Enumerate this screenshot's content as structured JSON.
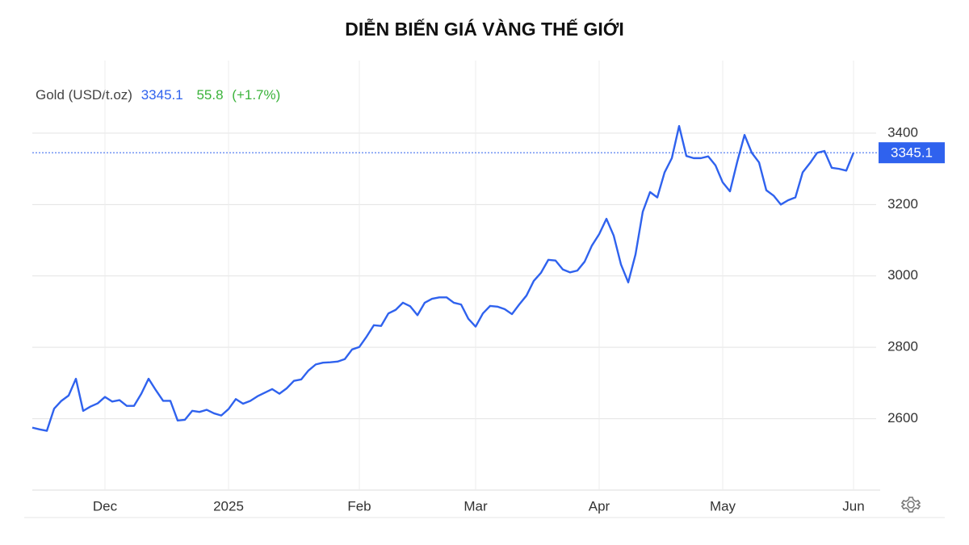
{
  "chart_data": {
    "type": "line",
    "title": "DIỄN BIẾN GIÁ VÀNG THẾ GIỚI",
    "instrument": "Gold (USD/t.oz)",
    "price": 3345.1,
    "change": 55.8,
    "change_pct_label": "(+1.7%)",
    "color": "#2f62ee",
    "grid": true,
    "ylim": [
      2400,
      3600
    ],
    "yticks": [
      2600,
      2800,
      3000,
      3200,
      3400
    ],
    "categories": [
      null,
      null,
      null,
      null,
      null,
      null,
      null,
      null,
      null,
      null,
      "Dec",
      null,
      null,
      null,
      null,
      null,
      null,
      null,
      null,
      null,
      null,
      null,
      null,
      null,
      null,
      null,
      null,
      "2025",
      null,
      null,
      null,
      null,
      null,
      null,
      null,
      null,
      null,
      null,
      null,
      null,
      null,
      null,
      null,
      null,
      null,
      "Feb",
      null,
      null,
      null,
      null,
      null,
      null,
      null,
      null,
      null,
      null,
      null,
      null,
      null,
      null,
      null,
      "Mar",
      null,
      null,
      null,
      null,
      null,
      null,
      null,
      null,
      null,
      null,
      null,
      null,
      null,
      null,
      null,
      null,
      "Apr",
      null,
      null,
      null,
      null,
      null,
      null,
      null,
      null,
      null,
      null,
      null,
      null,
      null,
      null,
      null,
      null,
      "May",
      null,
      null,
      null,
      null,
      null,
      null,
      null,
      null,
      null,
      null,
      null,
      null,
      null,
      null,
      null,
      null,
      null,
      "Jun"
    ],
    "values": [
      2575,
      2570,
      2566,
      2628,
      2650,
      2665,
      2712,
      2622,
      2634,
      2643,
      2661,
      2648,
      2652,
      2636,
      2636,
      2670,
      2712,
      2680,
      2650,
      2650,
      2595,
      2597,
      2622,
      2619,
      2625,
      2615,
      2609,
      2627,
      2655,
      2642,
      2650,
      2663,
      2673,
      2683,
      2670,
      2685,
      2706,
      2710,
      2735,
      2752,
      2757,
      2758,
      2760,
      2767,
      2794,
      2801,
      2830,
      2862,
      2860,
      2895,
      2905,
      2925,
      2915,
      2890,
      2925,
      2936,
      2940,
      2940,
      2925,
      2920,
      2880,
      2858,
      2895,
      2916,
      2914,
      2907,
      2893,
      2920,
      2945,
      2986,
      3009,
      3045,
      3043,
      3018,
      3010,
      3015,
      3040,
      3085,
      3117,
      3160,
      3113,
      3032,
      2982,
      3060,
      3180,
      3235,
      3220,
      3290,
      3330,
      3420,
      3336,
      3330,
      3330,
      3335,
      3310,
      3262,
      3237,
      3320,
      3395,
      3345,
      3318,
      3240,
      3225,
      3200,
      3212,
      3220,
      3290,
      3316,
      3345,
      3350,
      3303,
      3300,
      3295,
      3345.1
    ]
  }
}
